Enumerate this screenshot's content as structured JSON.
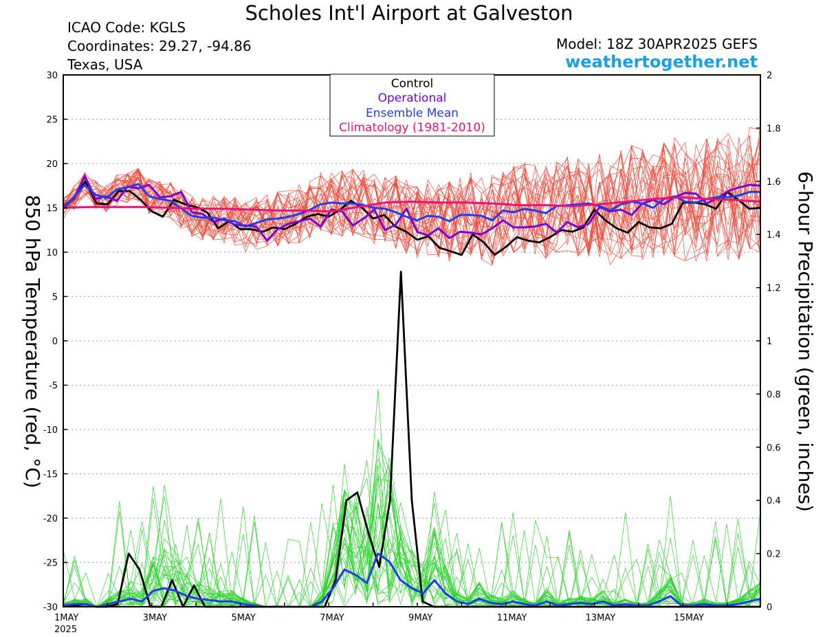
{
  "header": {
    "title": "Scholes Int'l Airport at Galveston",
    "icao": "ICAO Code: KGLS",
    "coordinates": "Coordinates: 29.27, -94.86",
    "location": "Texas, USA",
    "model": "Model: 18Z 30APR2025 GEFS",
    "site": "weathertogether.net"
  },
  "colors": {
    "control": "#000000",
    "operational": "#7a00d4",
    "ensemble_mean": "#1f3cf0",
    "climatology": "#e8127a",
    "member_temp": "#f04a3a",
    "member_precip": "#2ed42e",
    "site": "#1aa0e8"
  },
  "chart_data": {
    "type": "line",
    "legend": {
      "placement": "top-center",
      "entries": [
        "Control",
        "Operational",
        "Ensemble Mean",
        "Climatology (1981-2010)"
      ]
    },
    "x_axis": {
      "start": "1MAY 2025",
      "ticks": [
        "1MAY",
        "3MAY",
        "5MAY",
        "7MAY",
        "9MAY",
        "11MAY",
        "13MAY",
        "15MAY"
      ],
      "year_label": "2025",
      "range_days": [
        0,
        15.75
      ]
    },
    "y_left": {
      "label": "850 hPa Temperature (red, °C)",
      "range": [
        -30,
        30
      ],
      "ticks": [
        30,
        25,
        20,
        15,
        10,
        5,
        0,
        -5,
        -10,
        -15,
        -20,
        -25,
        -30
      ]
    },
    "y_right": {
      "label": "6-hour Precipitation (green, inches)",
      "range": [
        0,
        2
      ],
      "ticks": [
        "2",
        "1.8",
        "1.6",
        "1.4",
        "1.2",
        "1",
        "0.8",
        "0.6",
        "0.4",
        "0.2",
        "0"
      ]
    },
    "grid": "dotted horizontal",
    "series": [
      {
        "name": "Control",
        "axis": "left",
        "values": [
          14.9,
          16.2,
          18,
          15.5,
          15.4,
          16.9,
          16.9,
          15.9,
          14.6,
          14,
          15.9,
          15.4,
          15.1,
          14.5,
          12.7,
          13.5,
          12.6,
          12.6,
          12.3,
          12.8,
          12.6,
          13.2,
          14,
          14.3,
          14,
          14.8,
          15.8,
          15,
          13.8,
          14.2,
          12.9,
          12.3,
          11.4,
          11.8,
          10.5,
          10.1,
          9.7,
          12,
          11.1,
          9.7,
          10.6,
          11.7,
          11.3,
          11.1,
          11.7,
          12.5,
          12.3,
          12.8,
          14.8,
          13.6,
          12.7,
          12.2,
          13.4,
          12.8,
          12.7,
          13.2,
          15.6,
          15.6,
          15.4,
          14.9,
          16.8,
          15.9,
          14.9,
          15
        ]
      },
      {
        "name": "Operational",
        "axis": "left",
        "values": [
          15.2,
          16,
          18.6,
          16,
          16.3,
          15.8,
          17.4,
          17.2,
          17.6,
          16.2,
          16.3,
          16.8,
          14.5,
          14.3,
          13.4,
          13.8,
          13.1,
          13,
          12.9,
          11.3,
          12.6,
          13.2,
          13.5,
          13.8,
          12.9,
          14.8,
          14.6,
          13,
          13.8,
          14.8,
          12.5,
          13.1,
          14.9,
          12.3,
          11.9,
          12.7,
          11.6,
          12.3,
          12.2,
          12,
          12.7,
          13.6,
          12.8,
          12.8,
          12.9,
          13.2,
          12.2,
          13.4,
          12.8,
          13.2,
          15.1,
          14.6,
          14.8,
          14.2,
          15.5,
          15.9,
          15.4,
          16.2,
          16.7,
          16.6,
          15.5,
          16.1,
          16.9,
          17.3,
          17.6,
          17.5
        ]
      },
      {
        "name": "Ensemble Mean",
        "axis": "left",
        "values": [
          15,
          16.2,
          17.6,
          16.5,
          16.1,
          17.1,
          17.3,
          17.7,
          16.3,
          16,
          15.8,
          14.9,
          14.1,
          13.9,
          13.9,
          13.6,
          13.5,
          12.9,
          13.3,
          13.7,
          13.8,
          14,
          14.3,
          14.8,
          15.4,
          15.6,
          15.5,
          15.5,
          15.3,
          15,
          14.9,
          14.5,
          14,
          13.6,
          14.1,
          14,
          13.5,
          14.2,
          14.2,
          14.1,
          13.6,
          14.7,
          14.5,
          14.9,
          14.7,
          14.4,
          15.2,
          15.3,
          15.4,
          15.5,
          15.2,
          14.7,
          15.4,
          15.7,
          15.5,
          15,
          16,
          16.3,
          15.7,
          15.6,
          16,
          16.2,
          16.2,
          16.4,
          16.8,
          16.8
        ]
      },
      {
        "name": "Climatology (1981-2010)",
        "axis": "left",
        "values": [
          15,
          15.1,
          15.1,
          15.1,
          15,
          14.9,
          14.9,
          14.8,
          14.7,
          14.7,
          14.6,
          15.1,
          15.6,
          15.7,
          15.6,
          15.6,
          15.5,
          15.3,
          15.3,
          15.2,
          15.4,
          15.7,
          16,
          16.2,
          16,
          15.9,
          15.7
        ]
      },
      {
        "name": "Control",
        "axis": "right",
        "values": [
          0.005,
          0.003,
          0.01,
          0,
          0,
          0.01,
          0.2,
          0.14,
          0,
          0,
          0.1,
          0,
          0.08,
          0,
          0,
          0,
          0,
          0,
          0,
          0,
          0,
          0,
          0,
          0,
          0,
          0.1,
          0.4,
          0.43,
          0.28,
          0.15,
          0.4,
          1.26,
          0.4,
          0.02,
          0,
          0,
          0,
          0,
          0,
          0,
          0,
          0,
          0,
          0,
          0,
          0,
          0,
          0,
          0,
          0,
          0,
          0,
          0,
          0,
          0,
          0,
          0,
          0,
          0,
          0,
          0,
          0,
          0,
          0,
          0
        ]
      },
      {
        "name": "Ensemble Mean",
        "axis": "right",
        "values": [
          0.005,
          0.01,
          0.01,
          0,
          0.01,
          0.02,
          0.03,
          0.02,
          0.06,
          0.07,
          0.06,
          0.04,
          0.03,
          0.025,
          0.02,
          0.02,
          0.01,
          0.005,
          0,
          0,
          0,
          0,
          0,
          0.02,
          0.07,
          0.14,
          0.12,
          0.09,
          0.2,
          0.17,
          0.1,
          0.07,
          0.05,
          0.1,
          0.05,
          0.02,
          0.01,
          0.03,
          0.015,
          0.01,
          0.02,
          0.01,
          0.005,
          0.02,
          0.005,
          0.01,
          0.015,
          0.01,
          0.02,
          0.005,
          0.01,
          0.005,
          0.005,
          0.02,
          0.04,
          0.005,
          0.005,
          0.01,
          0.005,
          0.005,
          0.01,
          0.02,
          0.03
        ]
      }
    ],
    "members": {
      "temperature_count": 30,
      "precipitation_count": 30
    }
  }
}
